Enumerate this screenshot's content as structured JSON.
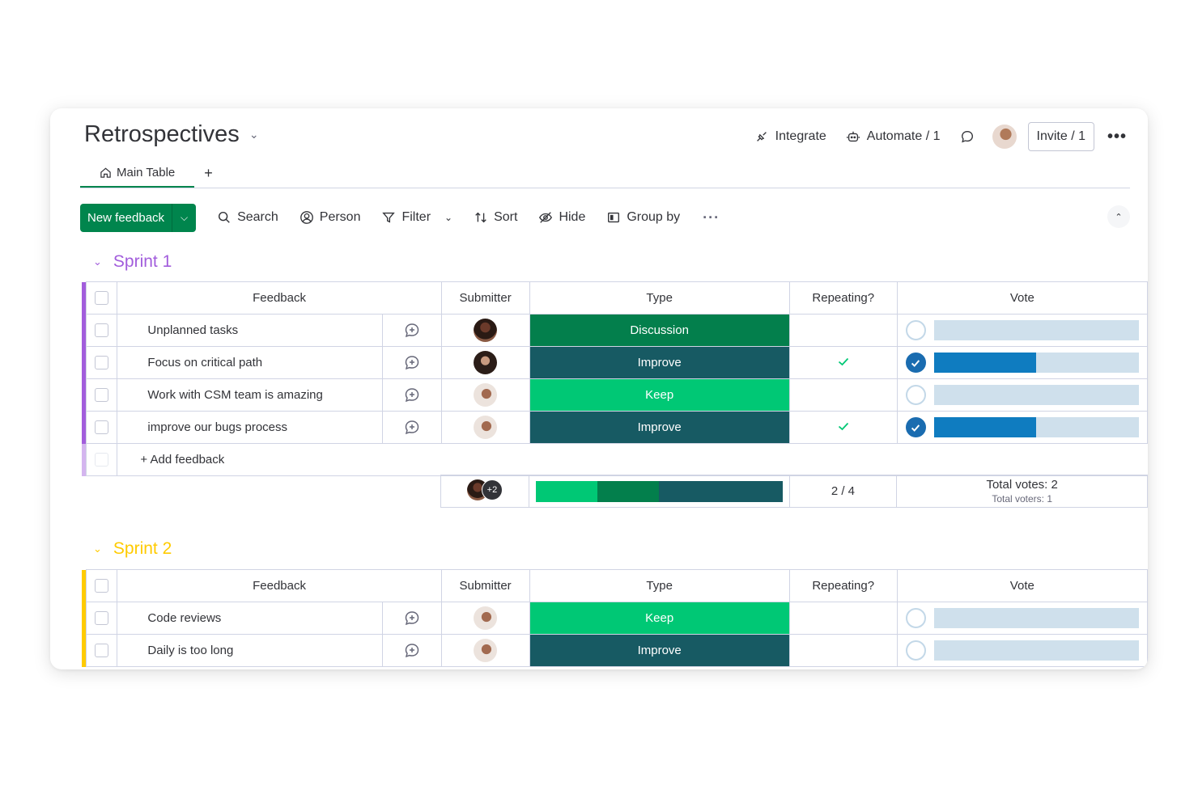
{
  "board": {
    "title": "Retrospectives"
  },
  "header": {
    "integrate_label": "Integrate",
    "automate_label": "Automate / 1",
    "invite_label": "Invite / 1",
    "more_label": "•••"
  },
  "tabs": {
    "main_table_label": "Main Table",
    "add_label": "+"
  },
  "toolbar": {
    "new_item_label": "New feedback",
    "search_label": "Search",
    "person_label": "Person",
    "filter_label": "Filter",
    "sort_label": "Sort",
    "hide_label": "Hide",
    "group_by_label": "Group by",
    "more_label": "···"
  },
  "columns": {
    "feedback": "Feedback",
    "submitter": "Submitter",
    "type": "Type",
    "repeating": "Repeating?",
    "vote": "Vote"
  },
  "colors": {
    "discussion": "#037f4c",
    "improve": "#175a63",
    "keep": "#00c875",
    "sprint1": "#a25ddc",
    "sprint2": "#ffcb00",
    "primary": "#00854d"
  },
  "groups": [
    {
      "title": "Sprint 1",
      "items": [
        {
          "name": "Unplanned tasks",
          "submitter_avatar": "avatar-dark-hair",
          "type": "Discussion",
          "repeating": false,
          "voted": false,
          "vote_fraction": 0
        },
        {
          "name": "Focus on critical path",
          "submitter_avatar": "avatar-curly-hair",
          "type": "Improve",
          "repeating": true,
          "voted": true,
          "vote_fraction": 0.5
        },
        {
          "name": "Work with CSM team is amazing",
          "submitter_avatar": "avatar-light",
          "type": "Keep",
          "repeating": false,
          "voted": false,
          "vote_fraction": 0
        },
        {
          "name": "improve our bugs process",
          "submitter_avatar": "avatar-light",
          "type": "Improve",
          "repeating": true,
          "voted": true,
          "vote_fraction": 0.5
        }
      ],
      "add_label": "+ Add feedback",
      "summary": {
        "extra_people": "+2",
        "type_distribution": [
          {
            "type": "Keep",
            "fraction": 0.25
          },
          {
            "type": "Discussion",
            "fraction": 0.25
          },
          {
            "type": "Improve",
            "fraction": 0.5
          }
        ],
        "repeating": "2 / 4",
        "total_votes": "Total votes: 2",
        "total_voters": "Total voters: 1"
      }
    },
    {
      "title": "Sprint 2",
      "items": [
        {
          "name": "Code reviews",
          "submitter_avatar": "avatar-light",
          "type": "Keep",
          "repeating": false,
          "voted": false,
          "vote_fraction": 0
        },
        {
          "name": "Daily is too long",
          "submitter_avatar": "avatar-light",
          "type": "Improve",
          "repeating": false,
          "voted": false,
          "vote_fraction": 0
        }
      ]
    }
  ]
}
